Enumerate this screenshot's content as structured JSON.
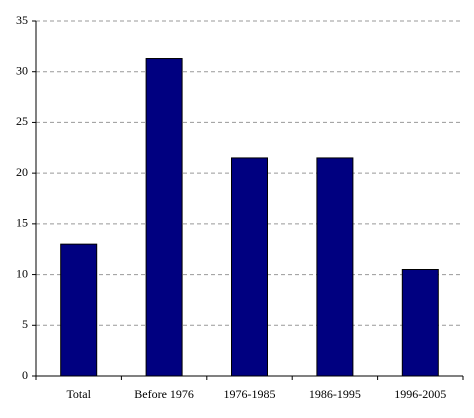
{
  "chart_data": {
    "type": "bar",
    "categories": [
      "Total",
      "Before 1976",
      "1976-1985",
      "1986-1995",
      "1996-2005"
    ],
    "values": [
      13,
      31.3,
      21.5,
      21.5,
      10.5
    ],
    "color": "#000080",
    "ylim": [
      0,
      35
    ],
    "yticks": [
      0,
      5,
      10,
      15,
      20,
      25,
      30,
      35
    ],
    "grid": true
  }
}
